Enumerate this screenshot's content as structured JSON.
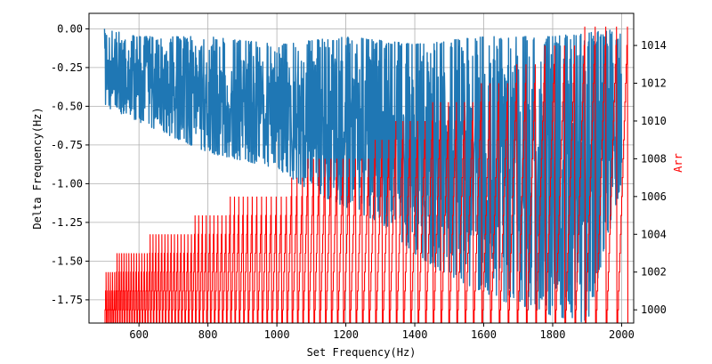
{
  "chart_data": {
    "type": "line",
    "title": "",
    "xlabel": "Set Frequency(Hz)",
    "ylabel_left": "Delta Frequency(Hz)",
    "ylabel_right": "Arr",
    "xlim": [
      455,
      2035
    ],
    "ylim_left": [
      -1.9,
      0.1
    ],
    "ylim_right": [
      999.3,
      1015.7
    ],
    "grid": true,
    "x_ticks": [
      600,
      800,
      1000,
      1200,
      1400,
      1600,
      1800,
      2000
    ],
    "x_tick_labels": [
      "600",
      "800",
      "1000",
      "1200",
      "1400",
      "1600",
      "1800",
      "2000"
    ],
    "y_left_ticks": [
      0.0,
      -0.25,
      -0.5,
      -0.75,
      -1.0,
      -1.25,
      -1.5,
      -1.75
    ],
    "y_left_tick_labels": [
      "0.00",
      "-0.25",
      "-0.50",
      "-0.75",
      "-1.00",
      "-1.25",
      "-1.50",
      "-1.75"
    ],
    "y_right_ticks": [
      1000,
      1002,
      1004,
      1006,
      1008,
      1010,
      1012,
      1014
    ],
    "y_right_tick_labels": [
      "1000",
      "1002",
      "1004",
      "1006",
      "1008",
      "1010",
      "1012",
      "1014"
    ],
    "colors": {
      "delta": "#1f77b4",
      "arr": "#ff0000",
      "right_label": "#ff0000"
    },
    "series": [
      {
        "name": "Delta Frequency",
        "axis": "left",
        "x": [
          500,
          2000
        ],
        "upper_envelope": [
          [
            500,
            0.0
          ],
          [
            600,
            -0.05
          ],
          [
            800,
            -0.05
          ],
          [
            1000,
            -0.1
          ],
          [
            1200,
            -0.05
          ],
          [
            1400,
            -0.1
          ],
          [
            1600,
            -0.05
          ],
          [
            1800,
            -0.05
          ],
          [
            2000,
            0.0
          ]
        ],
        "lower_envelope": [
          [
            500,
            -0.5
          ],
          [
            600,
            -0.6
          ],
          [
            700,
            -0.7
          ],
          [
            800,
            -0.8
          ],
          [
            900,
            -0.85
          ],
          [
            1000,
            -0.9
          ],
          [
            1100,
            -1.05
          ],
          [
            1200,
            -1.15
          ],
          [
            1300,
            -1.25
          ],
          [
            1400,
            -1.45
          ],
          [
            1500,
            -1.6
          ],
          [
            1600,
            -1.7
          ],
          [
            1700,
            -1.8
          ],
          [
            1800,
            -1.85
          ],
          [
            1900,
            -1.9
          ],
          [
            2000,
            -1.0
          ]
        ]
      },
      {
        "name": "Arr",
        "axis": "right",
        "x": [
          500,
          2000
        ],
        "min_value": 999.0,
        "max_envelope": [
          [
            500,
            1002
          ],
          [
            550,
            1003
          ],
          [
            700,
            1004
          ],
          [
            800,
            1005
          ],
          [
            900,
            1006
          ],
          [
            1000,
            1006
          ],
          [
            1100,
            1008
          ],
          [
            1200,
            1008
          ],
          [
            1300,
            1009
          ],
          [
            1350,
            1010
          ],
          [
            1500,
            1011
          ],
          [
            1600,
            1012
          ],
          [
            1700,
            1013
          ],
          [
            1800,
            1014
          ],
          [
            1900,
            1015
          ],
          [
            2000,
            1015
          ]
        ]
      }
    ]
  }
}
